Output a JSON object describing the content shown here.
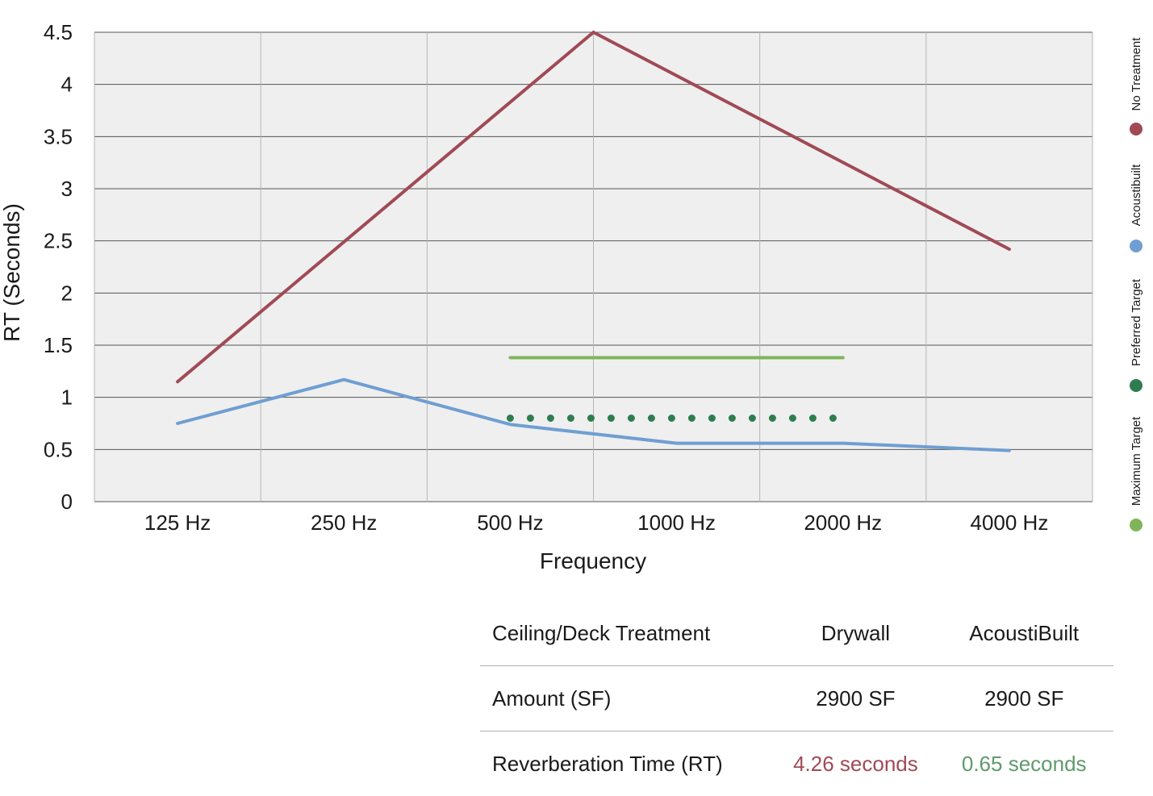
{
  "chart_data": {
    "type": "line",
    "title": "",
    "xlabel": "Frequency",
    "ylabel": "RT (Seconds)",
    "categories": [
      "125 Hz",
      "250 Hz",
      "500 Hz",
      "1000 Hz",
      "2000 Hz",
      "4000 Hz"
    ],
    "yticks": [
      "0",
      "0.5",
      "1",
      "1.5",
      "2",
      "2.5",
      "3",
      "3.5",
      "4",
      "4.5"
    ],
    "ylim": [
      0,
      4.5
    ],
    "grid": true,
    "legend_position": "right, vertical",
    "series": [
      {
        "name": "No Treatment",
        "color": "#a04a55",
        "style": "solid",
        "points": [
          [
            0,
            1.15
          ],
          [
            2.5,
            4.5
          ],
          [
            5,
            2.42
          ]
        ]
      },
      {
        "name": "Acoustibuilt",
        "color": "#6f9ed2",
        "style": "solid",
        "points": [
          [
            0,
            0.75
          ],
          [
            1,
            1.17
          ],
          [
            2,
            0.74
          ],
          [
            3,
            0.56
          ],
          [
            4,
            0.56
          ],
          [
            5,
            0.49
          ]
        ]
      },
      {
        "name": "Preferred Target",
        "color": "#2e7d4f",
        "style": "dotted",
        "points": [
          [
            2,
            0.8
          ],
          [
            4,
            0.8
          ]
        ]
      },
      {
        "name": "Maximum Target",
        "color": "#7fb55a",
        "style": "solid",
        "points": [
          [
            2,
            1.38
          ],
          [
            4,
            1.38
          ]
        ]
      }
    ]
  },
  "table": {
    "rows": [
      [
        "Ceiling/Deck Treatment",
        "Drywall",
        "AcoustiBuilt"
      ],
      [
        "Amount (SF)",
        "2900 SF",
        "2900 SF"
      ],
      [
        "Reverberation Time (RT)",
        "4.26 seconds",
        "0.65 seconds"
      ]
    ],
    "highlight_colors": {
      "drywall": "#a04a55",
      "acoustibuilt": "#5f9a6c"
    }
  }
}
